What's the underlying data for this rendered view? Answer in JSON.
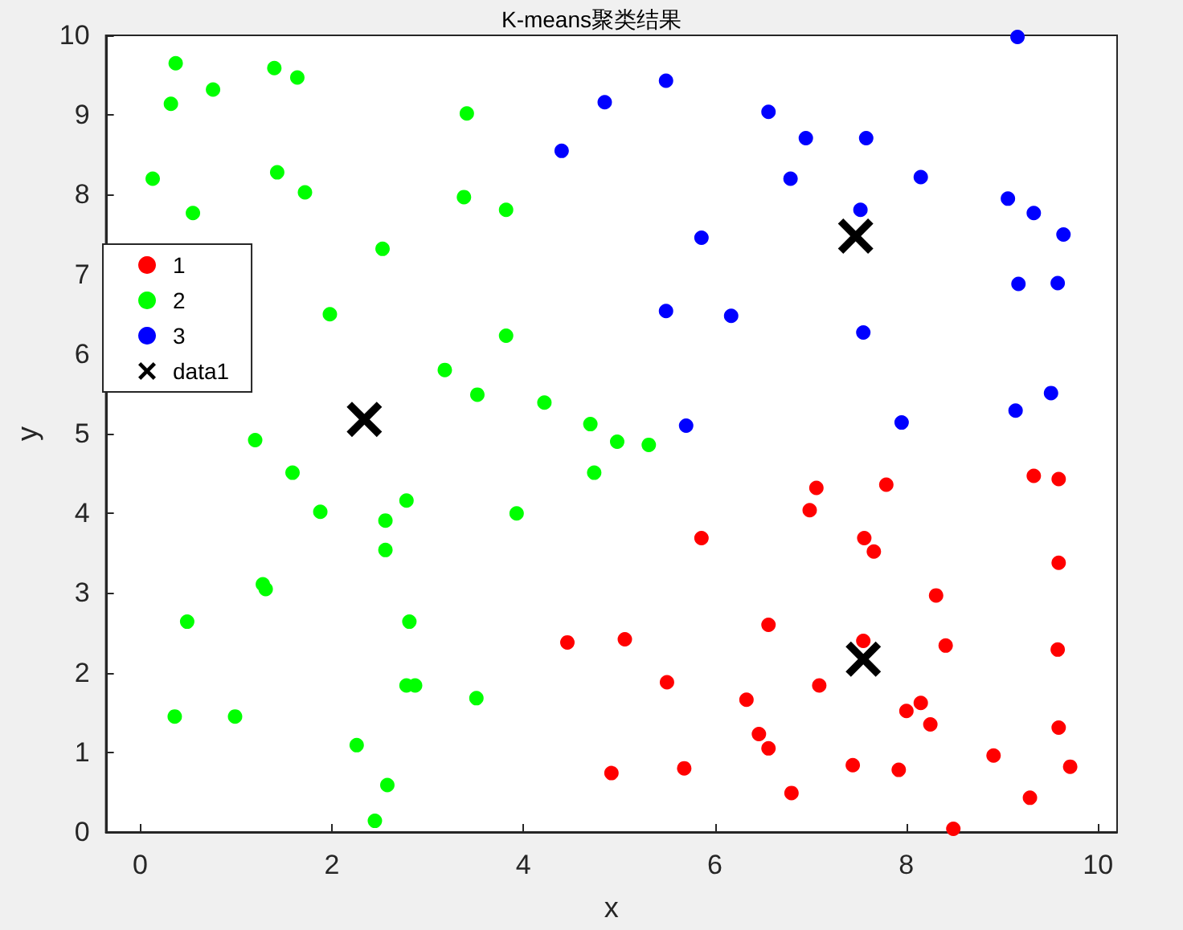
{
  "chart_data": {
    "type": "scatter",
    "title": "K-means聚类结果",
    "xlabel": "x",
    "ylabel": "y",
    "xlim": [
      -0.36,
      10.2
    ],
    "xticks": [
      0,
      2,
      4,
      6,
      8,
      10
    ],
    "ylim": [
      0,
      10
    ],
    "yticks": [
      0,
      1,
      2,
      3,
      4,
      5,
      6,
      7,
      8,
      9,
      10
    ],
    "grid": false,
    "legend": "top left",
    "marker": "circle",
    "series": [
      {
        "name": "1",
        "color": "#ff0000",
        "x": [
          7.79,
          7.06,
          9.33,
          9.59,
          6.99,
          5.86,
          7.56,
          7.66,
          9.59,
          8.31,
          6.56,
          7.55,
          4.46,
          5.06,
          8.41,
          9.58,
          5.5,
          7.09,
          6.33,
          8.15,
          8.0,
          8.25,
          6.46,
          6.56,
          9.59,
          8.91,
          9.71,
          4.92,
          5.68,
          7.44,
          7.92,
          6.8,
          9.29,
          8.49
        ],
        "values": [
          4.36,
          4.32,
          4.47,
          4.43,
          4.04,
          3.69,
          3.69,
          3.52,
          3.38,
          2.97,
          2.6,
          2.4,
          2.38,
          2.42,
          2.34,
          2.29,
          1.88,
          1.84,
          1.66,
          1.62,
          1.52,
          1.35,
          1.23,
          1.05,
          1.31,
          0.96,
          0.82,
          0.74,
          0.8,
          0.84,
          0.78,
          0.49,
          0.43,
          0.04
        ]
      },
      {
        "name": "2",
        "color": "#00ff00",
        "x": [
          0.37,
          0.32,
          0.76,
          1.4,
          1.64,
          0.13,
          0.55,
          1.43,
          1.72,
          2.53,
          3.41,
          3.38,
          3.82,
          1.98,
          3.82,
          3.18,
          3.52,
          4.22,
          4.7,
          4.98,
          5.31,
          1.2,
          4.74,
          1.59,
          1.88,
          2.78,
          2.56,
          2.56,
          3.93,
          1.28,
          1.31,
          0.49,
          2.81,
          2.78,
          2.87,
          3.51,
          0.36,
          0.99,
          2.26,
          2.58,
          2.45
        ],
        "values": [
          9.65,
          9.14,
          9.32,
          9.59,
          9.47,
          8.2,
          7.77,
          8.28,
          8.03,
          7.32,
          9.02,
          7.97,
          7.81,
          6.5,
          6.23,
          5.8,
          5.49,
          5.39,
          5.12,
          4.9,
          4.86,
          4.92,
          4.51,
          4.51,
          4.02,
          4.16,
          3.91,
          3.54,
          4.0,
          3.11,
          3.05,
          2.64,
          2.64,
          1.84,
          1.84,
          1.68,
          1.45,
          1.45,
          1.09,
          0.59,
          0.14
        ]
      },
      {
        "name": "3",
        "color": "#0000ff",
        "x": [
          4.85,
          4.4,
          5.49,
          6.56,
          6.95,
          7.58,
          6.79,
          8.15,
          5.86,
          7.52,
          9.06,
          9.33,
          9.64,
          9.17,
          9.58,
          5.49,
          6.17,
          7.55,
          5.7,
          7.95,
          9.14,
          9.51,
          9.16
        ],
        "values": [
          9.16,
          8.55,
          9.43,
          9.04,
          8.71,
          8.71,
          8.2,
          8.22,
          7.46,
          7.81,
          7.95,
          7.77,
          7.5,
          6.88,
          6.89,
          6.54,
          6.48,
          6.27,
          5.1,
          5.14,
          5.29,
          5.51,
          9.98
        ]
      },
      {
        "name": "data1",
        "color": "#000000",
        "marker": "cross",
        "x": [
          2.34,
          7.47,
          7.55
        ],
        "values": [
          5.18,
          7.48,
          2.17
        ]
      }
    ]
  }
}
